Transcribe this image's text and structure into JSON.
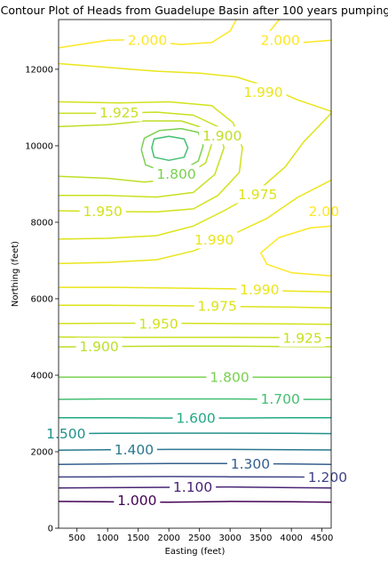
{
  "chart_data": {
    "type": "contour",
    "title": "Contour Plot of Heads from Guadelupe Basin after 100 years pumping",
    "xlabel": "Easting (feet)",
    "ylabel": "Northing (feet)",
    "xlim": [
      200,
      4650
    ],
    "ylim": [
      0,
      13300
    ],
    "x_ticks": [
      500,
      1000,
      1500,
      2000,
      2500,
      3000,
      3500,
      4000,
      4500
    ],
    "y_ticks": [
      0,
      2000,
      4000,
      6000,
      8000,
      10000,
      12000
    ],
    "colormap": "viridis",
    "grid": false,
    "levels": [
      1.0,
      1.1,
      1.2,
      1.3,
      1.4,
      1.5,
      1.6,
      1.7,
      1.8,
      1.9,
      1.925,
      1.95,
      1.975,
      1.99,
      2.0
    ],
    "level_colors": {
      "1.000": "#440154",
      "1.100": "#482475",
      "1.200": "#414487",
      "1.300": "#355f8d",
      "1.400": "#2a788e",
      "1.500": "#21918c",
      "1.600": "#22a884",
      "1.700": "#44bf70",
      "1.800": "#7ad151",
      "1.900": "#bddf26",
      "1.925": "#c8e020",
      "1.950": "#d2e21b",
      "1.975": "#dde318",
      "1.990": "#eae51a",
      "2.000": "#fde725"
    },
    "contour_labels": [
      {
        "text": "2.000",
        "level": "2.000",
        "x": 1650,
        "y": 12770
      },
      {
        "text": "2.000",
        "level": "2.000",
        "x": 3820,
        "y": 12770
      },
      {
        "text": "1.990",
        "level": "1.990",
        "x": 3540,
        "y": 11400
      },
      {
        "text": "1.925",
        "level": "1.925",
        "x": 1190,
        "y": 10870
      },
      {
        "text": "1.900",
        "level": "1.900",
        "x": 2870,
        "y": 10270
      },
      {
        "text": "1.800",
        "level": "1.800",
        "x": 2120,
        "y": 9270
      },
      {
        "text": "1.975",
        "level": "1.975",
        "x": 3450,
        "y": 8730
      },
      {
        "text": "1.950",
        "level": "1.950",
        "x": 920,
        "y": 8290
      },
      {
        "text": "2.00",
        "level": "2.000",
        "x": 4530,
        "y": 8290
      },
      {
        "text": "1.990",
        "level": "1.990",
        "x": 2740,
        "y": 7550
      },
      {
        "text": "1.990",
        "level": "1.990",
        "x": 3480,
        "y": 6240
      },
      {
        "text": "1.975",
        "level": "1.975",
        "x": 2790,
        "y": 5810
      },
      {
        "text": "1.950",
        "level": "1.950",
        "x": 1830,
        "y": 5350
      },
      {
        "text": "1.925",
        "level": "1.925",
        "x": 4180,
        "y": 4980
      },
      {
        "text": "1.900",
        "level": "1.900",
        "x": 860,
        "y": 4750
      },
      {
        "text": "1.800",
        "level": "1.800",
        "x": 2990,
        "y": 3950
      },
      {
        "text": "1.700",
        "level": "1.700",
        "x": 3820,
        "y": 3380
      },
      {
        "text": "1.600",
        "level": "1.600",
        "x": 2440,
        "y": 2880
      },
      {
        "text": "1.500",
        "level": "1.500",
        "x": 320,
        "y": 2480
      },
      {
        "text": "1.400",
        "level": "1.400",
        "x": 1430,
        "y": 2060
      },
      {
        "text": "1.300",
        "level": "1.300",
        "x": 3330,
        "y": 1680
      },
      {
        "text": "1.200",
        "level": "1.200",
        "x": 4590,
        "y": 1340
      },
      {
        "text": "1.100",
        "level": "1.100",
        "x": 2390,
        "y": 1080
      },
      {
        "text": "1.000",
        "level": "1.000",
        "x": 1480,
        "y": 730
      }
    ],
    "contour_paths": [
      {
        "level": "1.000",
        "points": [
          [
            200,
            700
          ],
          [
            1000,
            690
          ],
          [
            2000,
            680
          ],
          [
            3000,
            700
          ],
          [
            4000,
            690
          ],
          [
            4650,
            680
          ]
        ]
      },
      {
        "level": "1.100",
        "points": [
          [
            200,
            1050
          ],
          [
            1000,
            1060
          ],
          [
            2000,
            1070
          ],
          [
            3000,
            1080
          ],
          [
            4000,
            1060
          ],
          [
            4650,
            1050
          ]
        ]
      },
      {
        "level": "1.200",
        "points": [
          [
            200,
            1340
          ],
          [
            1000,
            1345
          ],
          [
            2000,
            1350
          ],
          [
            3000,
            1345
          ],
          [
            4000,
            1340
          ],
          [
            4650,
            1335
          ]
        ]
      },
      {
        "level": "1.300",
        "points": [
          [
            200,
            1670
          ],
          [
            1000,
            1680
          ],
          [
            2000,
            1690
          ],
          [
            3000,
            1690
          ],
          [
            4000,
            1680
          ],
          [
            4650,
            1670
          ]
        ]
      },
      {
        "level": "1.400",
        "points": [
          [
            200,
            2040
          ],
          [
            1000,
            2050
          ],
          [
            2000,
            2060
          ],
          [
            3000,
            2060
          ],
          [
            4000,
            2050
          ],
          [
            4650,
            2045
          ]
        ]
      },
      {
        "level": "1.500",
        "points": [
          [
            200,
            2470
          ],
          [
            1000,
            2480
          ],
          [
            2000,
            2485
          ],
          [
            3000,
            2485
          ],
          [
            4000,
            2480
          ],
          [
            4650,
            2475
          ]
        ]
      },
      {
        "level": "1.600",
        "points": [
          [
            200,
            2890
          ],
          [
            1000,
            2890
          ],
          [
            2000,
            2880
          ],
          [
            3000,
            2880
          ],
          [
            4000,
            2890
          ],
          [
            4650,
            2890
          ]
        ]
      },
      {
        "level": "1.700",
        "points": [
          [
            200,
            3370
          ],
          [
            1000,
            3380
          ],
          [
            2000,
            3380
          ],
          [
            3000,
            3380
          ],
          [
            4000,
            3370
          ],
          [
            4650,
            3370
          ]
        ]
      },
      {
        "level": "1.800",
        "points": [
          [
            200,
            3950
          ],
          [
            1000,
            3950
          ],
          [
            2000,
            3950
          ],
          [
            3000,
            3950
          ],
          [
            4000,
            3945
          ],
          [
            4650,
            3945
          ]
        ]
      },
      {
        "level": "1.900",
        "points": [
          [
            200,
            4740
          ],
          [
            1000,
            4750
          ],
          [
            2000,
            4760
          ],
          [
            3000,
            4760
          ],
          [
            4000,
            4750
          ],
          [
            4650,
            4745
          ]
        ]
      },
      {
        "level": "1.925",
        "points": [
          [
            200,
            5000
          ],
          [
            1000,
            4990
          ],
          [
            2000,
            4990
          ],
          [
            3000,
            4990
          ],
          [
            4000,
            4985
          ],
          [
            4650,
            4980
          ]
        ]
      },
      {
        "level": "1.950",
        "points": [
          [
            200,
            5350
          ],
          [
            1000,
            5360
          ],
          [
            2000,
            5360
          ],
          [
            3000,
            5350
          ],
          [
            4000,
            5340
          ],
          [
            4650,
            5330
          ]
        ]
      },
      {
        "level": "1.975",
        "points": [
          [
            200,
            5830
          ],
          [
            1000,
            5830
          ],
          [
            2000,
            5820
          ],
          [
            3000,
            5800
          ],
          [
            4000,
            5780
          ],
          [
            4650,
            5760
          ]
        ]
      },
      {
        "level": "1.990",
        "points": [
          [
            200,
            6300
          ],
          [
            1000,
            6300
          ],
          [
            2000,
            6280
          ],
          [
            3000,
            6260
          ],
          [
            4000,
            6200
          ],
          [
            4650,
            6180
          ]
        ]
      },
      {
        "level": "2.000",
        "points": [
          [
            4650,
            6600
          ],
          [
            4000,
            6680
          ],
          [
            3600,
            6900
          ],
          [
            3500,
            7200
          ],
          [
            3800,
            7600
          ],
          [
            4300,
            7850
          ],
          [
            4650,
            7900
          ]
        ]
      },
      {
        "level": "1.990",
        "points": [
          [
            200,
            6920
          ],
          [
            1000,
            6950
          ],
          [
            1800,
            7020
          ],
          [
            2400,
            7250
          ],
          [
            3000,
            7650
          ],
          [
            3600,
            8100
          ],
          [
            4100,
            8650
          ],
          [
            4650,
            9100
          ]
        ]
      },
      {
        "level": "1.975",
        "points": [
          [
            200,
            7560
          ],
          [
            1000,
            7580
          ],
          [
            1800,
            7650
          ],
          [
            2400,
            7900
          ],
          [
            2900,
            8300
          ],
          [
            3400,
            8750
          ],
          [
            3900,
            9450
          ],
          [
            4200,
            10100
          ],
          [
            4650,
            10850
          ]
        ]
      },
      {
        "level": "1.950",
        "points": [
          [
            200,
            8300
          ],
          [
            1000,
            8280
          ],
          [
            1800,
            8270
          ],
          [
            2400,
            8350
          ],
          [
            2800,
            8700
          ],
          [
            3150,
            9300
          ],
          [
            3200,
            9950
          ],
          [
            3050,
            10600
          ],
          [
            2700,
            11050
          ],
          [
            2000,
            11150
          ],
          [
            1200,
            11120
          ],
          [
            200,
            11150
          ]
        ]
      },
      {
        "level": "1.925",
        "points": [
          [
            200,
            8700
          ],
          [
            1000,
            8700
          ],
          [
            1800,
            8660
          ],
          [
            2400,
            8780
          ],
          [
            2750,
            9250
          ],
          [
            2900,
            9950
          ],
          [
            2800,
            10500
          ],
          [
            2400,
            10800
          ],
          [
            1800,
            10880
          ],
          [
            1000,
            10850
          ],
          [
            200,
            10850
          ]
        ]
      },
      {
        "level": "1.900",
        "points": [
          [
            200,
            9200
          ],
          [
            1000,
            9150
          ],
          [
            1600,
            9050
          ],
          [
            2200,
            9150
          ],
          [
            2600,
            9550
          ],
          [
            2700,
            10050
          ],
          [
            2600,
            10450
          ],
          [
            2200,
            10650
          ],
          [
            1600,
            10650
          ],
          [
            1000,
            10550
          ],
          [
            200,
            10500
          ]
        ]
      },
      {
        "level": "1.800",
        "points": [
          [
            1550,
            9900
          ],
          [
            1620,
            9500
          ],
          [
            1900,
            9330
          ],
          [
            2200,
            9350
          ],
          [
            2480,
            9600
          ],
          [
            2560,
            10000
          ],
          [
            2480,
            10350
          ],
          [
            2200,
            10450
          ],
          [
            1850,
            10400
          ],
          [
            1600,
            10200
          ],
          [
            1550,
            9900
          ]
        ]
      },
      {
        "level": "1.700",
        "points": [
          [
            1720,
            9950
          ],
          [
            1760,
            9700
          ],
          [
            2000,
            9620
          ],
          [
            2250,
            9700
          ],
          [
            2310,
            9950
          ],
          [
            2250,
            10180
          ],
          [
            2000,
            10250
          ],
          [
            1760,
            10180
          ],
          [
            1720,
            9950
          ]
        ]
      },
      {
        "level": "1.990",
        "points": [
          [
            200,
            12150
          ],
          [
            1000,
            12050
          ],
          [
            1800,
            11950
          ],
          [
            2500,
            11900
          ],
          [
            3100,
            11800
          ],
          [
            3600,
            11550
          ],
          [
            4100,
            11200
          ],
          [
            4650,
            10900
          ]
        ]
      },
      {
        "level": "2.000",
        "points": [
          [
            200,
            12560
          ],
          [
            1000,
            12760
          ],
          [
            1400,
            12770
          ],
          [
            2200,
            12650
          ],
          [
            2700,
            12700
          ],
          [
            3000,
            13000
          ],
          [
            3100,
            13300
          ]
        ]
      },
      {
        "level": "2.000",
        "points": [
          [
            3800,
            13300
          ],
          [
            3650,
            13000
          ],
          [
            3800,
            12760
          ],
          [
            4200,
            12700
          ],
          [
            4650,
            12760
          ]
        ]
      }
    ]
  }
}
